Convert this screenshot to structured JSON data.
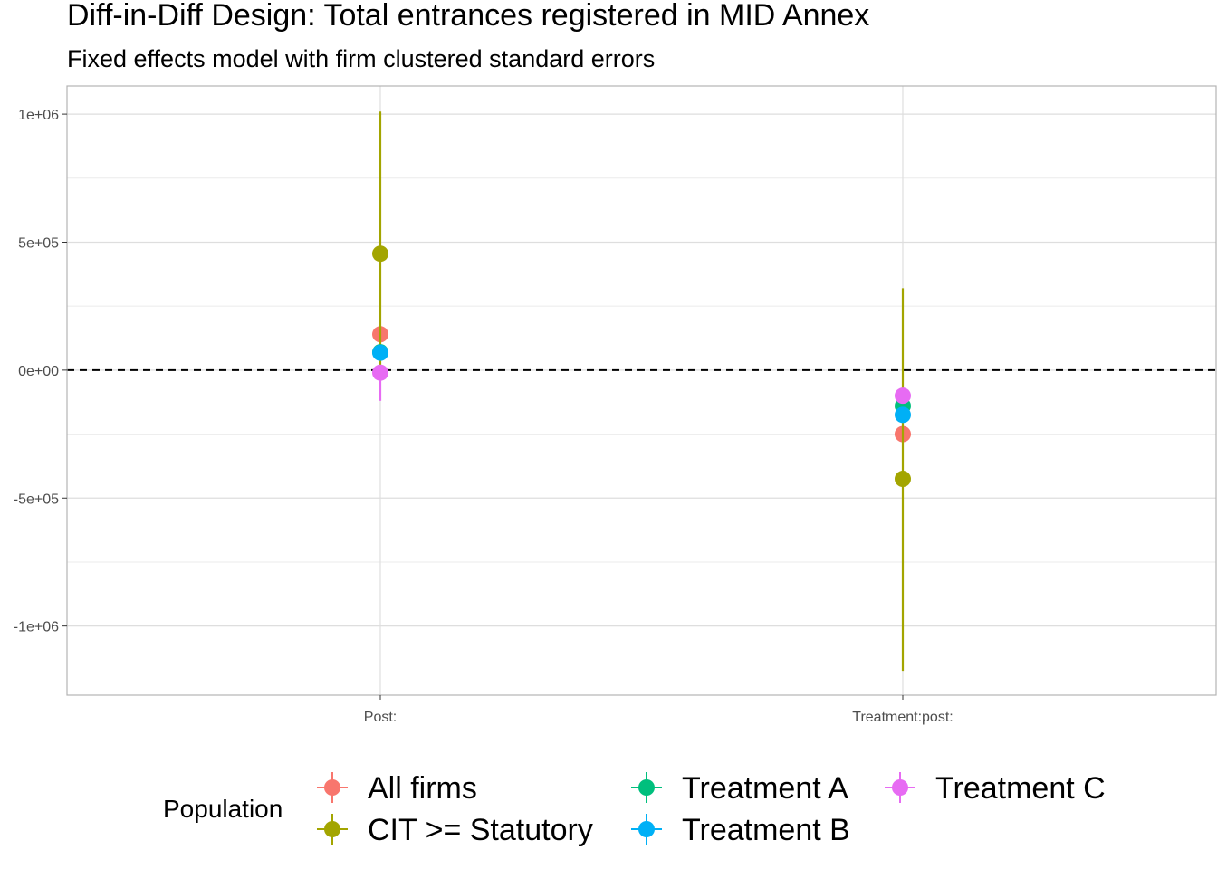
{
  "chart_data": {
    "type": "scatter",
    "title": "Diff-in-Diff Design: Total entrances registered in MID Annex",
    "subtitle": "Fixed effects model with firm clustered standard errors",
    "xlabel": "",
    "ylabel": "",
    "categories": [
      "Post:",
      "Treatment:post:"
    ],
    "y_ticks": [
      1000000,
      500000,
      0,
      -500000,
      -1000000
    ],
    "y_tick_labels": [
      "1e+06",
      "5e+05",
      "0e+00",
      "-5e+05",
      "-1e+06"
    ],
    "ylim": [
      -1270000,
      1110000
    ],
    "reference_line": {
      "y": 0,
      "style": "dashed"
    },
    "grid": true,
    "legend": {
      "title": "Population",
      "placement": "bottom"
    },
    "series": [
      {
        "name": "All firms",
        "color": "#F8766D",
        "points": [
          {
            "x": "Post:",
            "y": 140000,
            "lower": 140000,
            "upper": 140000
          },
          {
            "x": "Treatment:post:",
            "y": -250000,
            "lower": -250000,
            "upper": -250000
          }
        ]
      },
      {
        "name": "CIT >= Statutory",
        "color": "#A3A500",
        "points": [
          {
            "x": "Post:",
            "y": 455000,
            "lower": -35000,
            "upper": 1010000
          },
          {
            "x": "Treatment:post:",
            "y": -425000,
            "lower": -1175000,
            "upper": 320000
          }
        ]
      },
      {
        "name": "Treatment A",
        "color": "#00BF7D",
        "points": [
          {
            "x": "Post:",
            "y": 70000,
            "lower": 70000,
            "upper": 70000
          },
          {
            "x": "Treatment:post:",
            "y": -140000,
            "lower": -140000,
            "upper": -140000
          }
        ]
      },
      {
        "name": "Treatment B",
        "color": "#00B0F6",
        "points": [
          {
            "x": "Post:",
            "y": 68000,
            "lower": 40000,
            "upper": 95000
          },
          {
            "x": "Treatment:post:",
            "y": -175000,
            "lower": -175000,
            "upper": -175000
          }
        ]
      },
      {
        "name": "Treatment C",
        "color": "#E76BF3",
        "points": [
          {
            "x": "Post:",
            "y": -10000,
            "lower": -120000,
            "upper": 5000
          },
          {
            "x": "Treatment:post:",
            "y": -100000,
            "lower": -100000,
            "upper": -100000
          }
        ]
      }
    ]
  }
}
